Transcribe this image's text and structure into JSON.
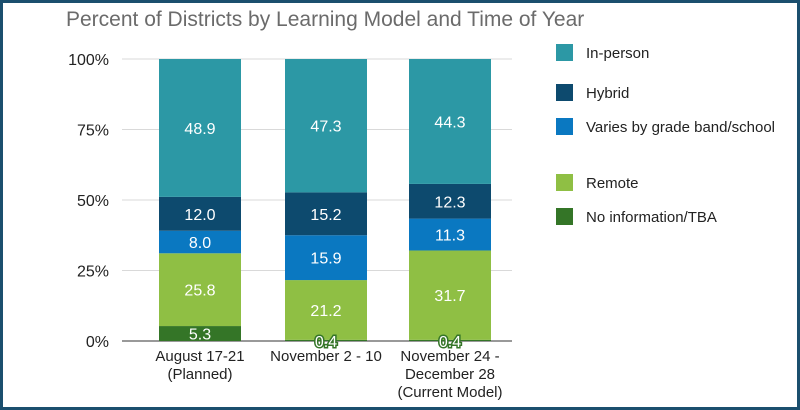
{
  "title": "Percent of Districts by Learning Model and Time of Year",
  "colors": {
    "in_person": "#2c98a5",
    "hybrid": "#0d4a6e",
    "varies": "#0a78c1",
    "remote": "#8fbf44",
    "no_info": "#347527",
    "frame": "#1b4f6e"
  },
  "legend": [
    {
      "label": "In-person",
      "color": "#2c98a5"
    },
    {
      "label": "Hybrid",
      "color": "#0d4a6e"
    },
    {
      "label": "Varies by grade band/school",
      "color": "#0a78c1"
    },
    {
      "label": "Remote",
      "color": "#8fbf44"
    },
    {
      "label": "No information/TBA",
      "color": "#347527"
    }
  ],
  "chart_data": {
    "type": "bar",
    "stacked": true,
    "title": "Percent of Districts by Learning Model and Time of Year",
    "categories": [
      [
        "August 17-21",
        "(Planned)"
      ],
      [
        "November 2 - 10"
      ],
      [
        "November 24 -",
        "December 28",
        "(Current Model)"
      ]
    ],
    "series": [
      {
        "name": "No information/TBA",
        "color": "#347527",
        "values": [
          5.3,
          0.4,
          0.4
        ],
        "labels": [
          "5.3",
          "0.4",
          "0.4"
        ]
      },
      {
        "name": "Remote",
        "color": "#8fbf44",
        "values": [
          25.8,
          21.2,
          31.7
        ],
        "labels": [
          "25.8",
          "21.2",
          "31.7"
        ]
      },
      {
        "name": "Varies by grade band/school",
        "color": "#0a78c1",
        "values": [
          8.0,
          15.9,
          11.3
        ],
        "labels": [
          "8.0",
          "15.9",
          "11.3"
        ]
      },
      {
        "name": "Hybrid",
        "color": "#0d4a6e",
        "values": [
          12.0,
          15.2,
          12.3
        ],
        "labels": [
          "12.0",
          "15.2",
          "12.3"
        ]
      },
      {
        "name": "In-person",
        "color": "#2c98a5",
        "values": [
          48.9,
          47.3,
          44.3
        ],
        "labels": [
          "48.9",
          "47.3",
          "44.3"
        ]
      }
    ],
    "yticks": [
      0,
      25,
      50,
      75,
      100
    ],
    "ytick_labels": [
      "0%",
      "25%",
      "50%",
      "75%",
      "100%"
    ],
    "ylim": [
      0,
      100
    ],
    "grid": true,
    "legend_position": "right"
  }
}
